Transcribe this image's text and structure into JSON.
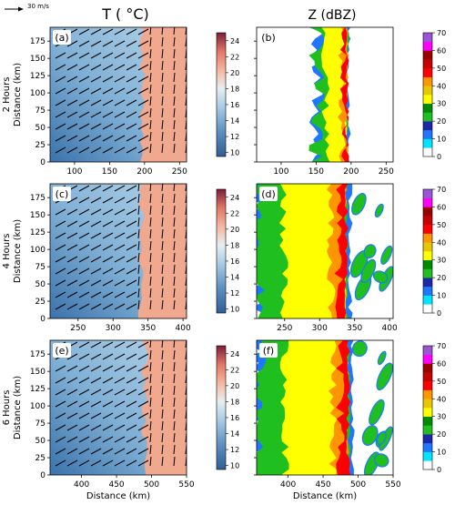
{
  "legend_vector": {
    "label": "30 m/s",
    "magnitude": 30
  },
  "column_titles": {
    "temperature": "T ( °C)",
    "reflectivity": "Z (dBZ)"
  },
  "row_labels": [
    "2 Hours",
    "4 Hours",
    "6 Hours"
  ],
  "colorbars": {
    "temperature": {
      "min": 9.5,
      "max": 25,
      "ticks": [
        10,
        12,
        14,
        16,
        18,
        20,
        22,
        24
      ]
    },
    "reflectivity": {
      "min": 0,
      "max": 70,
      "ticks": [
        0,
        10,
        20,
        30,
        40,
        50,
        60,
        70
      ],
      "colors": [
        "#ffffff",
        "#00e5ff",
        "#1f77ff",
        "#1d27a8",
        "#1fbf1f",
        "#008a00",
        "#ffff00",
        "#e6c700",
        "#ff9500",
        "#ff0000",
        "#c70000",
        "#990000",
        "#ff00ff",
        "#9a55d6"
      ]
    }
  },
  "chart_data": [
    {
      "panel": "(a)",
      "type": "heatmap",
      "field": "temperature",
      "time": "2 Hours",
      "xlim": [
        65,
        260
      ],
      "ylim": [
        0,
        195
      ],
      "xticks": [
        100,
        150,
        200,
        250
      ],
      "yticks": [
        0,
        25,
        50,
        75,
        100,
        125,
        150,
        175
      ],
      "ylabel": "Distance (km)",
      "front_x": 197,
      "cold_temp": 13,
      "warm_temp": 21,
      "vector_region": "both"
    },
    {
      "panel": "(b)",
      "type": "heatmap",
      "field": "reflectivity",
      "time": "2 Hours",
      "xlim": [
        65,
        260
      ],
      "ylim": [
        0,
        195
      ],
      "xticks": [
        100,
        150,
        200,
        250
      ],
      "echo_west_x": 150,
      "front_x": 195,
      "max_dbz": 65
    },
    {
      "panel": "(c)",
      "type": "heatmap",
      "field": "temperature",
      "time": "4 Hours",
      "xlim": [
        210,
        405
      ],
      "ylim": [
        0,
        195
      ],
      "xticks": [
        250,
        300,
        350,
        400
      ],
      "yticks": [
        0,
        25,
        50,
        75,
        100,
        125,
        150,
        175
      ],
      "ylabel": "Distance (km)",
      "front_x": 340,
      "cold_temp": 13,
      "warm_temp": 21
    },
    {
      "panel": "(d)",
      "type": "heatmap",
      "field": "reflectivity",
      "time": "4 Hours",
      "xlim": [
        210,
        405
      ],
      "ylim": [
        0,
        195
      ],
      "xticks": [
        250,
        300,
        350,
        400
      ],
      "echo_west_x": 210,
      "front_x": 340,
      "max_dbz": 65
    },
    {
      "panel": "(e)",
      "type": "heatmap",
      "field": "temperature",
      "time": "6 Hours",
      "xlim": [
        355,
        550
      ],
      "ylim": [
        0,
        195
      ],
      "xticks": [
        400,
        450,
        500,
        550
      ],
      "yticks": [
        0,
        25,
        50,
        75,
        100,
        125,
        150,
        175
      ],
      "ylabel": "Distance (km)",
      "xlabel": "Distance (km)",
      "front_x": 490,
      "cold_temp": 13,
      "warm_temp": 21
    },
    {
      "panel": "(f)",
      "type": "heatmap",
      "field": "reflectivity",
      "time": "6 Hours",
      "xlim": [
        355,
        550
      ],
      "ylim": [
        0,
        195
      ],
      "xticks": [
        400,
        450,
        500,
        550
      ],
      "xlabel": "Distance (km)",
      "echo_west_x": 355,
      "front_x": 488,
      "max_dbz": 65
    }
  ]
}
